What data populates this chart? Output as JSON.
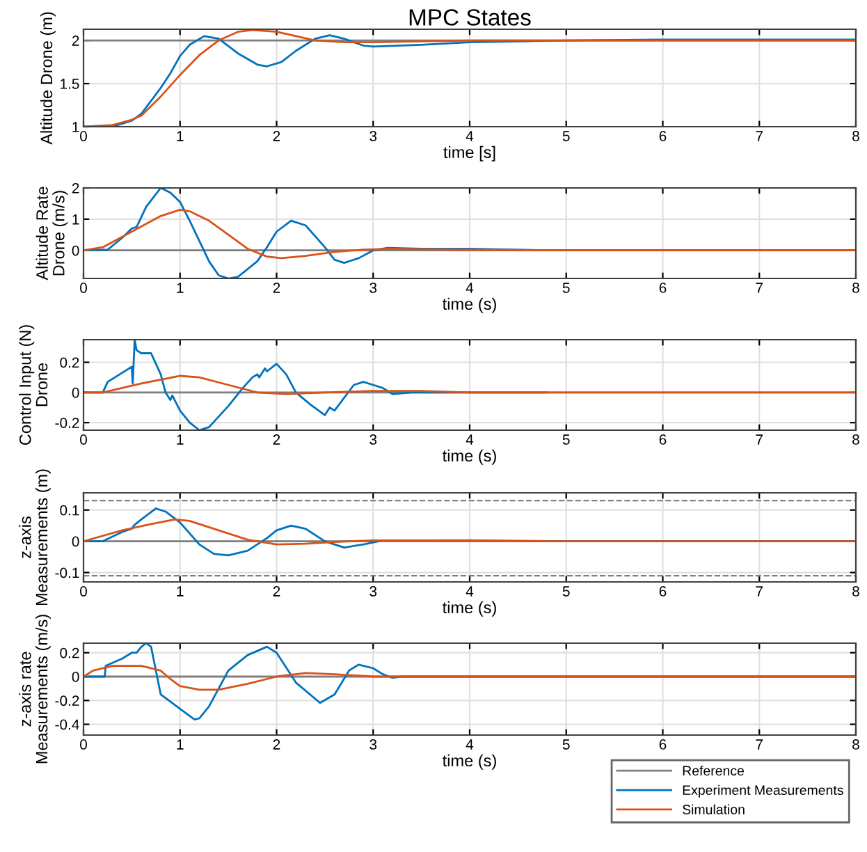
{
  "chart_data": [
    {
      "type": "line",
      "title": "MPC States",
      "xlabel": "time [s]",
      "ylabel": "Altitude Drone (m)",
      "xlim": [
        0,
        8
      ],
      "xticks": [
        0,
        1,
        2,
        3,
        4,
        5,
        6,
        7,
        8
      ],
      "ylim": [
        1,
        2.13
      ],
      "yticks": [
        1,
        1.5,
        2
      ],
      "grid": true,
      "line_style": "solid",
      "series": [
        {
          "color": "#7f7f7f",
          "x": [
            0,
            8
          ],
          "values": [
            2,
            2
          ]
        },
        {
          "color": "#0072bd",
          "x": [
            0,
            0.3,
            0.5,
            0.6,
            0.8,
            0.9,
            1.0,
            1.1,
            1.25,
            1.4,
            1.6,
            1.8,
            1.9,
            2.05,
            2.2,
            2.4,
            2.55,
            2.7,
            2.9,
            3.0,
            3.5,
            4,
            5,
            6,
            8
          ],
          "values": [
            1,
            1.0,
            1.07,
            1.15,
            1.45,
            1.62,
            1.82,
            1.95,
            2.05,
            2.02,
            1.85,
            1.72,
            1.7,
            1.75,
            1.88,
            2.02,
            2.06,
            2.02,
            1.94,
            1.93,
            1.95,
            1.98,
            2.0,
            2.01,
            2.01
          ]
        },
        {
          "color": "#d95319",
          "x": [
            0,
            0.3,
            0.5,
            0.6,
            0.8,
            1.0,
            1.2,
            1.4,
            1.6,
            1.75,
            2.0,
            2.2,
            2.4,
            2.7,
            3,
            3.5,
            4,
            8
          ],
          "values": [
            1,
            1.02,
            1.08,
            1.13,
            1.35,
            1.6,
            1.83,
            2.0,
            2.1,
            2.12,
            2.1,
            2.05,
            2.0,
            1.98,
            1.98,
            1.99,
            2.0,
            2.0
          ]
        }
      ]
    },
    {
      "type": "line",
      "xlabel": "time (s)",
      "ylabel": "Altitude Rate\nDrone (m/s)",
      "xlim": [
        0,
        8
      ],
      "xticks": [
        0,
        1,
        2,
        3,
        4,
        5,
        6,
        7,
        8
      ],
      "ylim": [
        -0.9,
        2
      ],
      "yticks": [
        0,
        1,
        2
      ],
      "grid": true,
      "line_style": "solid",
      "series": [
        {
          "color": "#7f7f7f",
          "x": [
            0,
            8
          ],
          "values": [
            0,
            0
          ]
        },
        {
          "color": "#0072bd",
          "x": [
            0,
            0.25,
            0.4,
            0.5,
            0.55,
            0.65,
            0.8,
            0.9,
            1.0,
            1.1,
            1.2,
            1.3,
            1.4,
            1.5,
            1.6,
            1.8,
            1.9,
            2.0,
            2.15,
            2.3,
            2.5,
            2.6,
            2.7,
            2.85,
            3.0,
            3.15,
            3.5,
            4,
            4.8,
            8
          ],
          "values": [
            0,
            0.02,
            0.4,
            0.7,
            0.75,
            1.4,
            2.0,
            1.85,
            1.55,
            0.95,
            0.3,
            -0.35,
            -0.8,
            -0.9,
            -0.85,
            -0.35,
            0.1,
            0.6,
            0.95,
            0.8,
            0.1,
            -0.3,
            -0.4,
            -0.25,
            0,
            0.08,
            0.05,
            0.05,
            0,
            0
          ]
        },
        {
          "color": "#d95319",
          "x": [
            0,
            0.2,
            0.5,
            0.8,
            1.0,
            1.1,
            1.3,
            1.5,
            1.7,
            1.9,
            2.05,
            2.3,
            2.6,
            2.9,
            3.2,
            3.6,
            4,
            5,
            8
          ],
          "values": [
            0,
            0.1,
            0.6,
            1.1,
            1.3,
            1.25,
            0.95,
            0.5,
            0.05,
            -0.2,
            -0.25,
            -0.18,
            -0.05,
            0.02,
            0.05,
            0.03,
            0.02,
            0,
            0
          ]
        }
      ]
    },
    {
      "type": "line",
      "xlabel": "time (s)",
      "ylabel": "Control Input (N)\nDrone",
      "xlim": [
        0,
        8
      ],
      "xticks": [
        0,
        1,
        2,
        3,
        4,
        5,
        6,
        7,
        8
      ],
      "ylim": [
        -0.25,
        0.35
      ],
      "yticks": [
        -0.2,
        0,
        0.2
      ],
      "grid": true,
      "line_style": "solid",
      "series": [
        {
          "color": "#7f7f7f",
          "x": [
            0,
            8
          ],
          "values": [
            0,
            0
          ]
        },
        {
          "color": "#0072bd",
          "x": [
            0,
            0.2,
            0.25,
            0.4,
            0.5,
            0.51,
            0.53,
            0.55,
            0.6,
            0.7,
            0.8,
            0.85,
            0.9,
            0.92,
            1.0,
            1.1,
            1.2,
            1.3,
            1.5,
            1.65,
            1.75,
            1.8,
            1.82,
            1.88,
            1.9,
            2.0,
            2.1,
            2.2,
            2.35,
            2.5,
            2.55,
            2.6,
            2.8,
            2.9,
            3.0,
            3.1,
            3.2,
            3.4,
            4,
            4.8
          ],
          "values": [
            0,
            0,
            0.07,
            0.13,
            0.17,
            0.06,
            0.35,
            0.28,
            0.26,
            0.26,
            0.12,
            0.0,
            -0.05,
            -0.02,
            -0.12,
            -0.2,
            -0.25,
            -0.23,
            -0.09,
            0.03,
            0.1,
            0.12,
            0.1,
            0.16,
            0.14,
            0.19,
            0.12,
            0.0,
            -0.08,
            -0.15,
            -0.1,
            -0.12,
            0.05,
            0.07,
            0.05,
            0.03,
            -0.01,
            0.0,
            0.0,
            0
          ]
        },
        {
          "color": "#d95319",
          "x": [
            0,
            0.2,
            0.6,
            1.0,
            1.2,
            1.5,
            1.8,
            2.1,
            2.5,
            3,
            3.5,
            4,
            5,
            8
          ],
          "values": [
            0,
            0,
            0.06,
            0.11,
            0.1,
            0.05,
            0.0,
            -0.01,
            0,
            0.01,
            0.01,
            0,
            0,
            0
          ]
        }
      ]
    },
    {
      "type": "line",
      "xlabel": "time (s)",
      "ylabel": "z-axis\nMeasurements (m)",
      "xlim": [
        0,
        8
      ],
      "xticks": [
        0,
        1,
        2,
        3,
        4,
        5,
        6,
        7,
        8
      ],
      "ylim": [
        -0.13,
        0.155
      ],
      "yticks": [
        -0.1,
        0,
        0.1
      ],
      "grid": true,
      "line_style": "solid",
      "ref_lines": [
        {
          "axis": "y",
          "value": 0.13,
          "color": "#7f7f7f",
          "line_style": "dashed"
        },
        {
          "axis": "y",
          "value": -0.11,
          "color": "#7f7f7f",
          "line_style": "dashed"
        }
      ],
      "series": [
        {
          "color": "#7f7f7f",
          "x": [
            0,
            8
          ],
          "values": [
            0,
            0
          ]
        },
        {
          "color": "#0072bd",
          "x": [
            0,
            0.2,
            0.4,
            0.5,
            0.52,
            0.6,
            0.75,
            0.85,
            1.0,
            1.2,
            1.35,
            1.5,
            1.7,
            1.9,
            2.0,
            2.15,
            2.3,
            2.5,
            2.7,
            2.9,
            3.1,
            3.5,
            4,
            5,
            8
          ],
          "values": [
            0,
            0,
            0.03,
            0.04,
            0.05,
            0.07,
            0.105,
            0.095,
            0.06,
            -0.01,
            -0.04,
            -0.045,
            -0.03,
            0.01,
            0.035,
            0.05,
            0.04,
            0.0,
            -0.02,
            -0.01,
            0.003,
            0.003,
            0.003,
            0,
            0
          ]
        },
        {
          "color": "#d95319",
          "x": [
            0,
            0.4,
            0.7,
            0.95,
            1.1,
            1.4,
            1.7,
            2.0,
            2.3,
            2.6,
            3.0,
            4,
            5,
            8
          ],
          "values": [
            0,
            0.035,
            0.055,
            0.07,
            0.065,
            0.035,
            0.005,
            -0.01,
            -0.008,
            -0.002,
            0.003,
            0.001,
            0,
            0
          ]
        }
      ]
    },
    {
      "type": "line",
      "xlabel": "time (s)",
      "ylabel": "z-axis rate\nMeasurements (m/s)",
      "xlim": [
        0,
        8
      ],
      "xticks": [
        0,
        1,
        2,
        3,
        4,
        5,
        6,
        7,
        8
      ],
      "ylim": [
        -0.49,
        0.28
      ],
      "yticks": [
        -0.4,
        -0.2,
        0,
        0.2
      ],
      "grid": true,
      "line_style": "solid",
      "legend": "bottom right",
      "series": [
        {
          "name": "Reference",
          "color": "#7f7f7f",
          "x": [
            0,
            8
          ],
          "values": [
            0,
            0
          ]
        },
        {
          "name": "Experiment Measurements",
          "color": "#0072bd",
          "x": [
            0,
            0.22,
            0.23,
            0.4,
            0.5,
            0.55,
            0.6,
            0.65,
            0.7,
            0.8,
            1.0,
            1.15,
            1.2,
            1.3,
            1.5,
            1.7,
            1.9,
            2.0,
            2.2,
            2.45,
            2.6,
            2.75,
            2.85,
            3.0,
            3.1,
            3.2,
            3.3,
            8
          ],
          "values": [
            0,
            0,
            0.09,
            0.15,
            0.2,
            0.2,
            0.25,
            0.28,
            0.25,
            -0.15,
            -0.27,
            -0.36,
            -0.35,
            -0.25,
            0.05,
            0.18,
            0.25,
            0.2,
            -0.05,
            -0.22,
            -0.15,
            0.05,
            0.1,
            0.07,
            0.02,
            -0.01,
            0,
            0
          ]
        },
        {
          "name": "Simulation",
          "color": "#d95319",
          "x": [
            0,
            0.1,
            0.3,
            0.6,
            0.8,
            0.9,
            1.0,
            1.2,
            1.4,
            1.7,
            2.0,
            2.3,
            2.6,
            3.0,
            3.5,
            8
          ],
          "values": [
            0,
            0.05,
            0.09,
            0.09,
            0.05,
            -0.02,
            -0.08,
            -0.11,
            -0.11,
            -0.06,
            0.0,
            0.03,
            0.02,
            0,
            0,
            0
          ]
        }
      ]
    }
  ]
}
